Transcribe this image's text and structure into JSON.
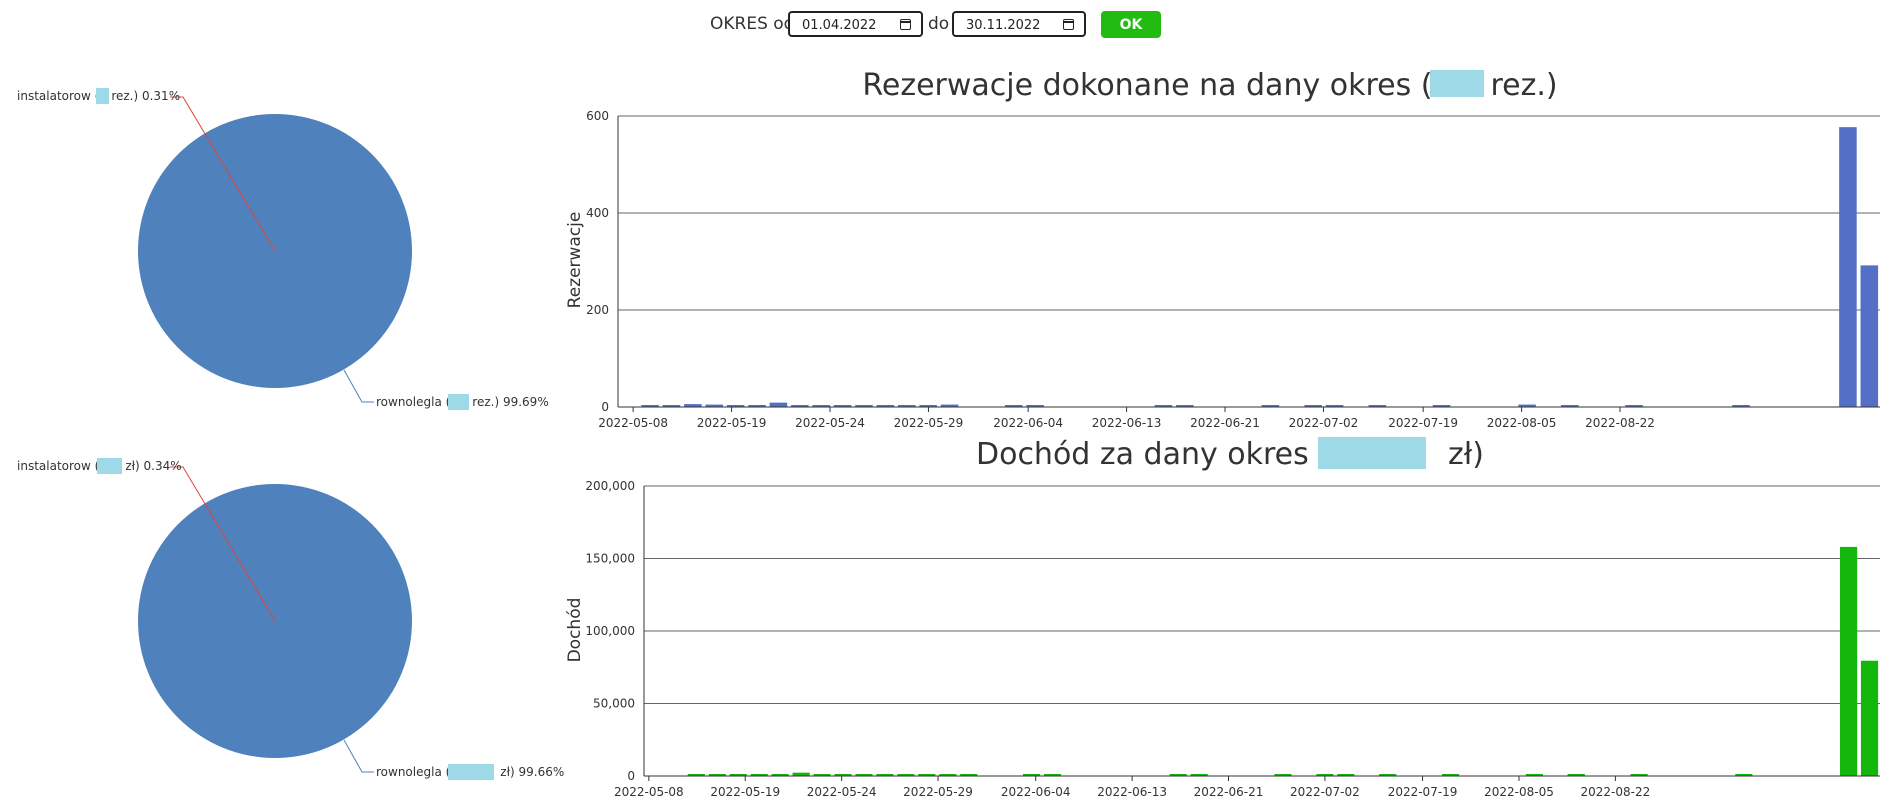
{
  "filter": {
    "okres_label": "OKRES od",
    "from_value": "01.04.2022",
    "do_label": "do",
    "to_value": "30.11.2022",
    "ok_label": "OK"
  },
  "pies": [
    {
      "slices": [
        {
          "label_prefix": "instalatorow (",
          "label_suffix": "rez.) 0.31%",
          "percent": 0.31
        },
        {
          "label_prefix": "rownolegla (",
          "label_suffix": "rez.) 99.69%",
          "percent": 99.69
        }
      ],
      "color": "#4f81bd",
      "leader_colors": [
        "#e0443a",
        "#4f81bd"
      ]
    },
    {
      "slices": [
        {
          "label_prefix": "instalatorow (",
          "label_suffix": "zł) 0.34%",
          "percent": 0.34
        },
        {
          "label_prefix": "rownolegla (",
          "label_suffix": "zł) 99.66%",
          "percent": 99.66
        }
      ],
      "color": "#4f81bd",
      "leader_colors": [
        "#e0443a",
        "#4f81bd"
      ]
    }
  ],
  "chart_data": [
    {
      "type": "bar",
      "title_prefix": "Rezerwacje dokonane na dany okres (",
      "title_suffix": "rez.)",
      "xlabel": "",
      "ylabel": "Rezerwacje",
      "ylim": [
        0,
        600
      ],
      "yticks": [
        "0",
        "200",
        "400",
        "600"
      ],
      "ytick_values": [
        0,
        200,
        400,
        600
      ],
      "xtick_labels": [
        "2022-05-08",
        "2022-05-19",
        "2022-05-24",
        "2022-05-29",
        "2022-06-04",
        "2022-06-13",
        "2022-06-21",
        "2022-07-02",
        "2022-07-19",
        "2022-08-05",
        "2022-08-22"
      ],
      "color": "#5470c6",
      "grid": true,
      "values": [
        0,
        1,
        2,
        6,
        5,
        1,
        2,
        9,
        2,
        1,
        1,
        3,
        4,
        3,
        1,
        5,
        0,
        0,
        1,
        1,
        0,
        0,
        0,
        0,
        0,
        1,
        1,
        0,
        0,
        0,
        1,
        0,
        1,
        1,
        0,
        1,
        0,
        0,
        1,
        0,
        0,
        0,
        5,
        0,
        1,
        0,
        0,
        1,
        0,
        0,
        0,
        0,
        1,
        0,
        0,
        0,
        0,
        577,
        292
      ]
    },
    {
      "type": "bar",
      "title_prefix": "Dochód za dany okres (",
      "title_suffix": "zł)",
      "xlabel": "",
      "ylabel": "Dochód",
      "ylim": [
        0,
        200000
      ],
      "yticks": [
        "0",
        "50,000",
        "100,000",
        "150,000",
        "200,000"
      ],
      "ytick_values": [
        0,
        50000,
        100000,
        150000,
        200000
      ],
      "xtick_labels": [
        "2022-05-08",
        "2022-05-19",
        "2022-05-24",
        "2022-05-29",
        "2022-06-04",
        "2022-06-13",
        "2022-06-21",
        "2022-07-02",
        "2022-07-19",
        "2022-08-05",
        "2022-08-22"
      ],
      "color": "#13b70b",
      "grid": true,
      "values": [
        0,
        0,
        300,
        1200,
        900,
        200,
        400,
        2300,
        400,
        200,
        200,
        600,
        900,
        700,
        200,
        800,
        0,
        0,
        300,
        200,
        0,
        0,
        0,
        0,
        0,
        200,
        200,
        0,
        0,
        0,
        300,
        0,
        200,
        200,
        0,
        300,
        0,
        0,
        300,
        0,
        0,
        0,
        1400,
        0,
        200,
        0,
        0,
        300,
        0,
        0,
        0,
        0,
        900,
        0,
        0,
        0,
        0,
        158000,
        79500
      ]
    }
  ],
  "redact_color": "#9ed9e8"
}
